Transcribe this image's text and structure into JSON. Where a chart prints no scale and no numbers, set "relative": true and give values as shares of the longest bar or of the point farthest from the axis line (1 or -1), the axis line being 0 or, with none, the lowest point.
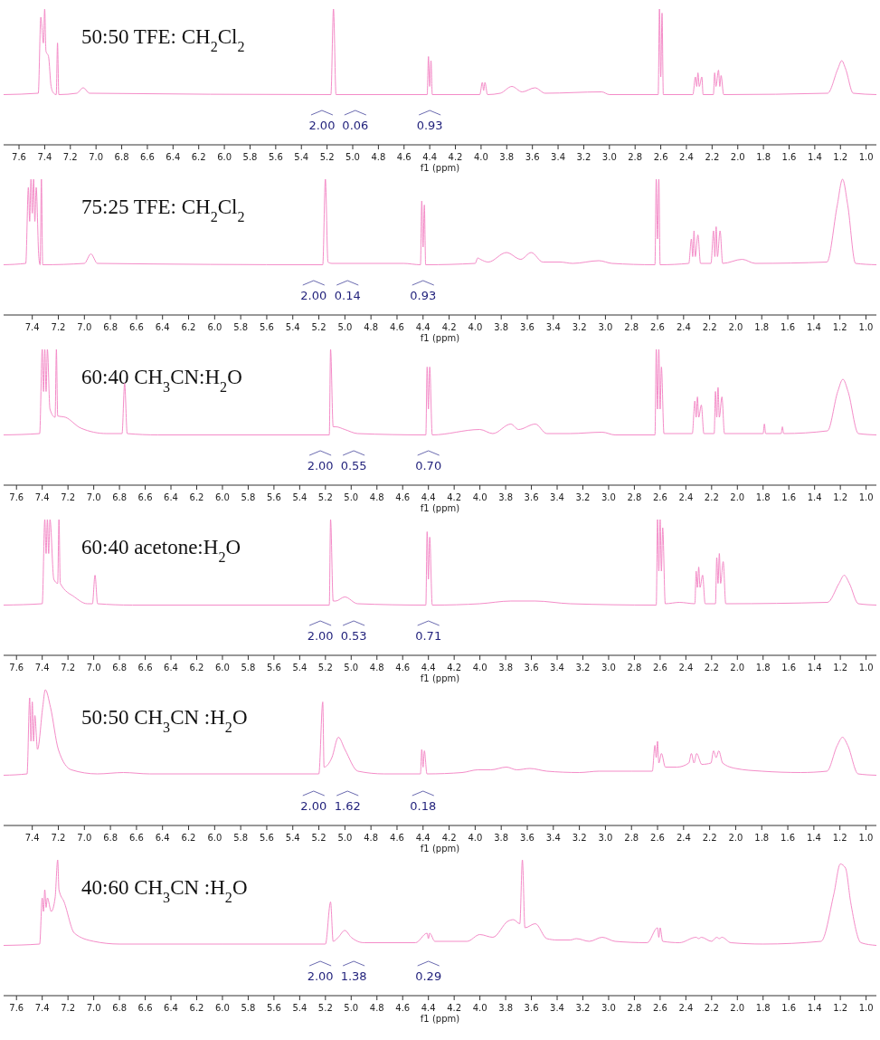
{
  "chart_data": [
    {
      "type": "line",
      "relative": true,
      "title": "50:50 TFE: CH$_{2}$Cl$_{2}$",
      "xlabel": "f1 (ppm)",
      "color": "#f48cc8",
      "xlim": [
        7.72,
        0.92
      ],
      "xticks": [
        7.6,
        7.4,
        7.2,
        {
          "value": 7,
          "label": "7.0"
        },
        6.8,
        6.6,
        6.4,
        6.2,
        {
          "value": 6,
          "label": "6.0"
        },
        5.8,
        5.6,
        5.4,
        5.2,
        {
          "value": 5,
          "label": "5.0"
        },
        4.8,
        4.6,
        4.4,
        4.2,
        {
          "value": 4,
          "label": "4.0"
        },
        3.8,
        3.6,
        3.4,
        3.2,
        {
          "value": 3,
          "label": "3.0"
        },
        2.8,
        2.6,
        2.4,
        2.2,
        {
          "value": 2,
          "label": "2.0"
        },
        1.8,
        1.6,
        1.4,
        1.2,
        {
          "value": 1,
          "label": "1.0"
        }
      ],
      "x": [
        7.72,
        7.45,
        7.43,
        7.41,
        7.4,
        7.39,
        7.37,
        7.35,
        7.33,
        7.31,
        7.3,
        7.29,
        7.15,
        7.1,
        7.05,
        5.17,
        5.15,
        5.13,
        4.42,
        4.41,
        4.4,
        4.39,
        4.38,
        4.01,
        3.99,
        3.98,
        3.97,
        3.95,
        3.85,
        3.76,
        3.68,
        3.58,
        3.5,
        3.06,
        3.0,
        2.62,
        2.61,
        2.6,
        2.59,
        2.58,
        2.35,
        2.33,
        2.32,
        2.31,
        2.3,
        2.28,
        2.27,
        2.19,
        2.18,
        2.17,
        2.15,
        2.14,
        2.13,
        2.11,
        1.3,
        1.22,
        1.19,
        1.16,
        1.1,
        0.92
      ],
      "values": [
        0.37,
        0.38,
        0.94,
        0.75,
        1,
        0.69,
        0.65,
        0.43,
        0.38,
        0.37,
        0.75,
        0.37,
        0.38,
        0.42,
        0.38,
        0.37,
        1,
        0.37,
        0.37,
        0.65,
        0.43,
        0.62,
        0.37,
        0.37,
        0.46,
        0.4,
        0.46,
        0.37,
        0.38,
        0.43,
        0.39,
        0.42,
        0.38,
        0.39,
        0.37,
        0.37,
        1,
        0.5,
        0.97,
        0.37,
        0.37,
        0.5,
        0.43,
        0.53,
        0.43,
        0.5,
        0.37,
        0.37,
        0.53,
        0.43,
        0.55,
        0.43,
        0.51,
        0.37,
        0.38,
        0.56,
        0.62,
        0.56,
        0.38,
        0.37
      ],
      "annotations": [
        "2.00",
        "0.06",
        "0.93"
      ]
    },
    {
      "type": "line",
      "relative": true,
      "title": "75:25 TFE: CH$_{2}$Cl$_{2}$",
      "xlabel": "f1 (ppm)",
      "color": "#f48cc8",
      "xlim": [
        7.62,
        0.92
      ],
      "xticks": [
        7.4,
        7.2,
        {
          "value": 7,
          "label": "7.0"
        },
        6.8,
        6.6,
        6.4,
        6.2,
        {
          "value": 6,
          "label": "6.0"
        },
        5.8,
        5.6,
        5.4,
        5.2,
        {
          "value": 5,
          "label": "5.0"
        },
        4.8,
        4.6,
        4.4,
        4.2,
        {
          "value": 4,
          "label": "4.0"
        },
        3.8,
        3.6,
        3.4,
        3.2,
        {
          "value": 3,
          "label": "3.0"
        },
        2.8,
        2.6,
        2.4,
        2.2,
        {
          "value": 2,
          "label": "2.0"
        },
        1.8,
        1.6,
        1.4,
        1.2,
        {
          "value": 1,
          "label": "1.0"
        }
      ],
      "x": [
        7.62,
        7.45,
        7.43,
        7.42,
        7.41,
        7.4,
        7.39,
        7.38,
        7.37,
        7.35,
        7.34,
        7.33,
        7.32,
        7.0,
        6.95,
        6.9,
        5.17,
        5.15,
        5.13,
        5.1,
        4.55,
        4.42,
        4.41,
        4.4,
        4.39,
        4.38,
        4.0,
        3.98,
        3.96,
        3.9,
        3.76,
        3.65,
        3.57,
        3.48,
        3.35,
        3.25,
        3.05,
        2.95,
        2.62,
        2.61,
        2.6,
        2.59,
        2.58,
        2.36,
        2.34,
        2.33,
        2.32,
        2.31,
        2.29,
        2.27,
        2.19,
        2.17,
        2.16,
        2.15,
        2.14,
        2.12,
        2.1,
        1.95,
        1.85,
        1.3,
        1.22,
        1.18,
        1.14,
        1.08,
        0.92
      ],
      "values": [
        0.37,
        0.38,
        0.94,
        0.69,
        1,
        0.75,
        1,
        0.69,
        0.94,
        0.43,
        0.37,
        1,
        0.37,
        0.38,
        0.45,
        0.38,
        0.37,
        1,
        0.39,
        0.38,
        0.38,
        0.37,
        0.84,
        0.5,
        0.81,
        0.37,
        0.38,
        0.42,
        0.41,
        0.39,
        0.46,
        0.41,
        0.46,
        0.39,
        0.39,
        0.38,
        0.4,
        0.38,
        0.37,
        1,
        0.56,
        1,
        0.37,
        0.38,
        0.56,
        0.43,
        0.62,
        0.43,
        0.59,
        0.38,
        0.38,
        0.62,
        0.43,
        0.65,
        0.43,
        0.62,
        0.38,
        0.41,
        0.38,
        0.39,
        0.81,
        1,
        0.81,
        0.38,
        0.37
      ],
      "annotations": [
        "2.00",
        "0.14",
        "0.93"
      ]
    },
    {
      "type": "line",
      "relative": true,
      "title": "60:40 CH$_{3}$CN:H$_{2}$O",
      "xlabel": "f1 (ppm)",
      "color": "#f48cc8",
      "xlim": [
        7.7,
        0.92
      ],
      "xticks": [
        7.6,
        7.4,
        7.2,
        {
          "value": 7,
          "label": "7.0"
        },
        6.8,
        6.6,
        6.4,
        6.2,
        {
          "value": 6,
          "label": "6.0"
        },
        5.8,
        5.6,
        5.4,
        5.2,
        {
          "value": 5,
          "label": "5.0"
        },
        4.8,
        4.6,
        4.4,
        4.2,
        {
          "value": 4,
          "label": "4.0"
        },
        3.8,
        3.6,
        3.4,
        3.2,
        {
          "value": 3,
          "label": "3.0"
        },
        2.8,
        2.6,
        2.4,
        2.2,
        {
          "value": 2,
          "label": "2.0"
        },
        1.8,
        1.6,
        1.4,
        1.2,
        {
          "value": 1,
          "label": "1.0"
        }
      ],
      "x": [
        7.7,
        7.42,
        7.4,
        7.39,
        7.38,
        7.37,
        7.36,
        7.34,
        7.3,
        7.29,
        7.28,
        7.22,
        7.1,
        6.9,
        6.78,
        6.76,
        6.74,
        6.5,
        5.17,
        5.16,
        5.14,
        5.12,
        5.05,
        4.95,
        4.42,
        4.41,
        4.4,
        4.39,
        4.37,
        4.0,
        3.9,
        3.76,
        3.7,
        3.57,
        3.48,
        3.3,
        3.05,
        2.95,
        2.64,
        2.63,
        2.62,
        2.61,
        2.6,
        2.59,
        2.57,
        2.35,
        2.33,
        2.32,
        2.31,
        2.3,
        2.28,
        2.26,
        2.18,
        2.17,
        2.16,
        2.15,
        2.14,
        2.12,
        2.1,
        1.8,
        1.79,
        1.78,
        1.66,
        1.65,
        1.64,
        1.3,
        1.22,
        1.18,
        1.14,
        1.06,
        0.92
      ],
      "values": [
        0.37,
        0.38,
        1,
        0.69,
        1,
        0.69,
        1,
        0.56,
        0.5,
        1,
        0.51,
        0.5,
        0.42,
        0.38,
        0.38,
        0.75,
        0.38,
        0.37,
        0.37,
        1,
        0.43,
        0.43,
        0.41,
        0.38,
        0.37,
        0.87,
        0.56,
        0.87,
        0.37,
        0.41,
        0.38,
        0.45,
        0.41,
        0.45,
        0.38,
        0.38,
        0.39,
        0.37,
        0.37,
        1,
        0.56,
        1,
        0.56,
        0.87,
        0.38,
        0.38,
        0.62,
        0.5,
        0.65,
        0.5,
        0.59,
        0.38,
        0.38,
        0.69,
        0.5,
        0.72,
        0.5,
        0.65,
        0.38,
        0.38,
        0.45,
        0.38,
        0.38,
        0.43,
        0.38,
        0.4,
        0.69,
        0.78,
        0.69,
        0.38,
        0.37
      ],
      "annotations": [
        "2.00",
        "0.55",
        "0.70"
      ]
    },
    {
      "type": "line",
      "relative": true,
      "title": "60:40 acetone:H$_{2}$O",
      "xlabel": "f1 (ppm)",
      "color": "#f48cc8",
      "xlim": [
        7.7,
        0.92
      ],
      "xticks": [
        7.6,
        7.4,
        7.2,
        {
          "value": 7,
          "label": "7.0"
        },
        6.8,
        6.6,
        6.4,
        6.2,
        {
          "value": 6,
          "label": "6.0"
        },
        5.8,
        5.6,
        5.4,
        5.2,
        {
          "value": 5,
          "label": "5.0"
        },
        4.8,
        4.6,
        4.4,
        4.2,
        {
          "value": 4,
          "label": "4.0"
        },
        3.8,
        3.6,
        3.4,
        3.2,
        {
          "value": 3,
          "label": "3.0"
        },
        2.8,
        2.6,
        2.4,
        2.2,
        {
          "value": 2,
          "label": "2.0"
        },
        1.8,
        1.6,
        1.4,
        1.2,
        {
          "value": 1,
          "label": "1.0"
        }
      ],
      "x": [
        7.7,
        7.4,
        7.38,
        7.37,
        7.36,
        7.35,
        7.34,
        7.31,
        7.28,
        7.27,
        7.26,
        7.15,
        7.05,
        7.01,
        6.99,
        6.97,
        6.7,
        5.17,
        5.16,
        5.14,
        5.12,
        5.05,
        4.95,
        4.42,
        4.41,
        4.4,
        4.39,
        4.37,
        4.0,
        3.76,
        3.57,
        3.3,
        2.63,
        2.62,
        2.61,
        2.6,
        2.59,
        2.58,
        2.56,
        2.45,
        2.33,
        2.32,
        2.31,
        2.3,
        2.29,
        2.27,
        2.25,
        2.17,
        2.16,
        2.15,
        2.14,
        2.13,
        2.11,
        2.09,
        1.3,
        1.21,
        1.17,
        1.13,
        1.06,
        0.92
      ],
      "values": [
        0.37,
        0.38,
        1,
        0.75,
        1,
        0.75,
        1,
        0.56,
        0.53,
        1,
        0.53,
        0.43,
        0.38,
        0.38,
        0.59,
        0.38,
        0.37,
        0.37,
        1,
        0.4,
        0.4,
        0.43,
        0.38,
        0.37,
        0.91,
        0.56,
        0.87,
        0.37,
        0.38,
        0.4,
        0.4,
        0.38,
        0.37,
        1,
        0.62,
        1,
        0.62,
        0.94,
        0.38,
        0.39,
        0.38,
        0.62,
        0.5,
        0.65,
        0.5,
        0.59,
        0.38,
        0.38,
        0.72,
        0.53,
        0.75,
        0.53,
        0.69,
        0.38,
        0.39,
        0.53,
        0.59,
        0.53,
        0.38,
        0.37
      ],
      "annotations": [
        "2.00",
        "0.53",
        "0.71"
      ]
    },
    {
      "type": "line",
      "relative": true,
      "title": "50:50 CH$_{3}$CN :H$_{2}$O",
      "xlabel": "f1 (ppm)",
      "color": "#f48cc8",
      "xlim": [
        7.62,
        0.92
      ],
      "xticks": [
        7.4,
        7.2,
        {
          "value": 7,
          "label": "7.0"
        },
        6.8,
        6.6,
        6.4,
        6.2,
        {
          "value": 6,
          "label": "6.0"
        },
        5.8,
        5.6,
        5.4,
        5.2,
        {
          "value": 5,
          "label": "5.0"
        },
        4.8,
        4.6,
        4.4,
        4.2,
        {
          "value": 4,
          "label": "4.0"
        },
        3.8,
        3.6,
        3.4,
        3.2,
        {
          "value": 3,
          "label": "3.0"
        },
        2.8,
        2.6,
        2.4,
        2.2,
        {
          "value": 2,
          "label": "2.0"
        },
        1.8,
        1.6,
        1.4,
        1.2,
        {
          "value": 1,
          "label": "1.0"
        }
      ],
      "x": [
        7.62,
        7.44,
        7.42,
        7.41,
        7.4,
        7.39,
        7.38,
        7.36,
        7.32,
        7.3,
        7.26,
        7.2,
        7.1,
        6.9,
        6.7,
        6.5,
        5.2,
        5.17,
        5.16,
        5.1,
        5.05,
        5.0,
        4.9,
        4.7,
        4.42,
        4.41,
        4.4,
        4.39,
        4.37,
        4.1,
        3.98,
        3.88,
        3.76,
        3.68,
        3.58,
        3.45,
        3.2,
        3.05,
        2.8,
        2.64,
        2.62,
        2.61,
        2.6,
        2.59,
        2.57,
        2.54,
        2.45,
        2.36,
        2.34,
        2.32,
        2.3,
        2.26,
        2.19,
        2.17,
        2.15,
        2.13,
        2.1,
        2.0,
        1.8,
        1.5,
        1.3,
        1.22,
        1.18,
        1.14,
        1.06,
        0.92
      ],
      "values": [
        0.37,
        0.38,
        0.94,
        0.62,
        0.91,
        0.62,
        0.81,
        0.56,
        0.87,
        1,
        0.87,
        0.56,
        0.41,
        0.38,
        0.39,
        0.38,
        0.38,
        0.91,
        0.43,
        0.5,
        0.65,
        0.56,
        0.4,
        0.38,
        0.38,
        0.56,
        0.43,
        0.55,
        0.38,
        0.39,
        0.41,
        0.41,
        0.43,
        0.41,
        0.42,
        0.4,
        0.39,
        0.4,
        0.4,
        0.4,
        0.59,
        0.5,
        0.62,
        0.46,
        0.53,
        0.43,
        0.43,
        0.46,
        0.53,
        0.46,
        0.53,
        0.45,
        0.46,
        0.55,
        0.5,
        0.55,
        0.46,
        0.42,
        0.4,
        0.39,
        0.4,
        0.59,
        0.65,
        0.59,
        0.38,
        0.37
      ],
      "annotations": [
        "2.00",
        "1.62",
        "0.18"
      ]
    },
    {
      "type": "line",
      "relative": true,
      "title": "40:60 CH$_{3}$CN :H$_{2}$O",
      "xlabel": "f1 (ppm)",
      "color": "#f48cc8",
      "xlim": [
        7.7,
        0.92
      ],
      "xticks": [
        7.6,
        7.4,
        7.2,
        {
          "value": 7,
          "label": "7.0"
        },
        6.8,
        6.6,
        6.4,
        6.2,
        {
          "value": 6,
          "label": "6.0"
        },
        5.8,
        5.6,
        5.4,
        5.2,
        {
          "value": 5,
          "label": "5.0"
        },
        4.8,
        4.6,
        4.4,
        4.2,
        {
          "value": 4,
          "label": "4.0"
        },
        3.8,
        3.6,
        3.4,
        3.2,
        {
          "value": 3,
          "label": "3.0"
        },
        2.8,
        2.6,
        2.4,
        2.2,
        {
          "value": 2,
          "label": "2.0"
        },
        1.8,
        1.6,
        1.4,
        1.2,
        {
          "value": 1,
          "label": "1.0"
        }
      ],
      "x": [
        7.7,
        7.42,
        7.4,
        7.39,
        7.38,
        7.37,
        7.36,
        7.33,
        7.3,
        7.28,
        7.27,
        7.23,
        7.15,
        7.0,
        6.8,
        6.0,
        5.2,
        5.16,
        5.14,
        5.1,
        5.05,
        5.0,
        4.9,
        4.5,
        4.41,
        4.4,
        4.39,
        4.35,
        4.1,
        4.0,
        3.9,
        3.78,
        3.74,
        3.69,
        3.67,
        3.65,
        3.57,
        3.48,
        3.4,
        3.3,
        3.25,
        3.15,
        3.05,
        2.95,
        2.7,
        2.62,
        2.61,
        2.6,
        2.58,
        2.45,
        2.32,
        2.3,
        2.28,
        2.2,
        2.16,
        2.14,
        2.12,
        2.05,
        1.8,
        1.35,
        1.25,
        1.2,
        1.16,
        1.12,
        1.04,
        0.92
      ],
      "values": [
        0.37,
        0.38,
        0.72,
        0.62,
        0.78,
        0.65,
        0.72,
        0.62,
        0.72,
        1,
        0.78,
        0.69,
        0.46,
        0.4,
        0.38,
        0.38,
        0.38,
        0.69,
        0.4,
        0.43,
        0.48,
        0.43,
        0.39,
        0.39,
        0.46,
        0.42,
        0.46,
        0.4,
        0.4,
        0.45,
        0.43,
        0.55,
        0.56,
        0.53,
        1,
        0.5,
        0.53,
        0.42,
        0.41,
        0.41,
        0.42,
        0.4,
        0.43,
        0.4,
        0.39,
        0.5,
        0.43,
        0.5,
        0.4,
        0.39,
        0.43,
        0.42,
        0.43,
        0.4,
        0.43,
        0.42,
        0.43,
        0.39,
        0.38,
        0.4,
        0.75,
        0.97,
        0.94,
        0.69,
        0.39,
        0.37
      ],
      "annotations": [
        "2.00",
        "1.38",
        "0.29"
      ]
    }
  ]
}
